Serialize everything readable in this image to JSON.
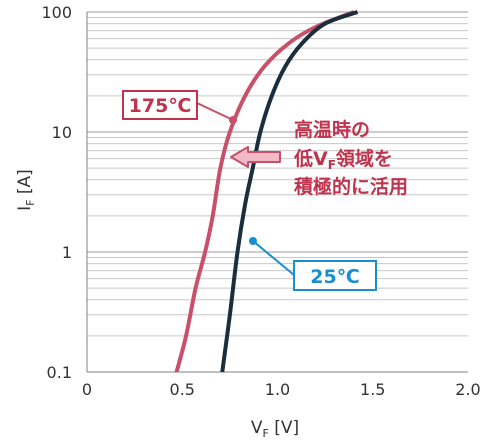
{
  "chart_data": {
    "type": "line",
    "x_scale": "linear",
    "y_scale": "log",
    "xlim": [
      0,
      2.0
    ],
    "ylim": [
      0.1,
      100
    ],
    "x_ticks": [
      "0",
      "0.5",
      "1.0",
      "1.5",
      "2.0"
    ],
    "y_ticks": [
      "0.1",
      "1",
      "10",
      "100"
    ],
    "xlabel_main": "V",
    "xlabel_sub": "F",
    "xlabel_unit": " [V]",
    "ylabel_main": "I",
    "ylabel_sub": "F",
    "ylabel_unit": " [A]",
    "grid": true,
    "series": [
      {
        "name": "175℃",
        "color": "#c8506a",
        "points": [
          [
            0.47,
            0.1
          ],
          [
            0.52,
            0.2
          ],
          [
            0.57,
            0.5
          ],
          [
            0.62,
            1
          ],
          [
            0.66,
            2
          ],
          [
            0.7,
            5
          ],
          [
            0.75,
            10
          ],
          [
            0.83,
            20
          ],
          [
            0.93,
            35
          ],
          [
            1.06,
            55
          ],
          [
            1.2,
            75
          ],
          [
            1.4,
            100
          ]
        ]
      },
      {
        "name": "25℃",
        "color": "#1a2e3d",
        "points": [
          [
            0.71,
            0.1
          ],
          [
            0.75,
            0.3
          ],
          [
            0.79,
            1
          ],
          [
            0.83,
            2.5
          ],
          [
            0.87,
            5
          ],
          [
            0.91,
            10
          ],
          [
            0.97,
            20
          ],
          [
            1.04,
            35
          ],
          [
            1.13,
            55
          ],
          [
            1.25,
            80
          ],
          [
            1.42,
            100
          ]
        ]
      }
    ],
    "annotations": {
      "label_175": "175℃",
      "label_25": "25℃",
      "note_line1": "高温時の",
      "note_line2_pre": "低V",
      "note_line2_sub": "F",
      "note_line2_post": "領域を",
      "note_line3": "積極的に活用"
    },
    "colors": {
      "hot": "#c8506a",
      "cold": "#1a2e3d",
      "tag_blue": "#1b8ed1",
      "note_red": "#c0334d",
      "arrow_fill": "#f2b9c7"
    }
  }
}
